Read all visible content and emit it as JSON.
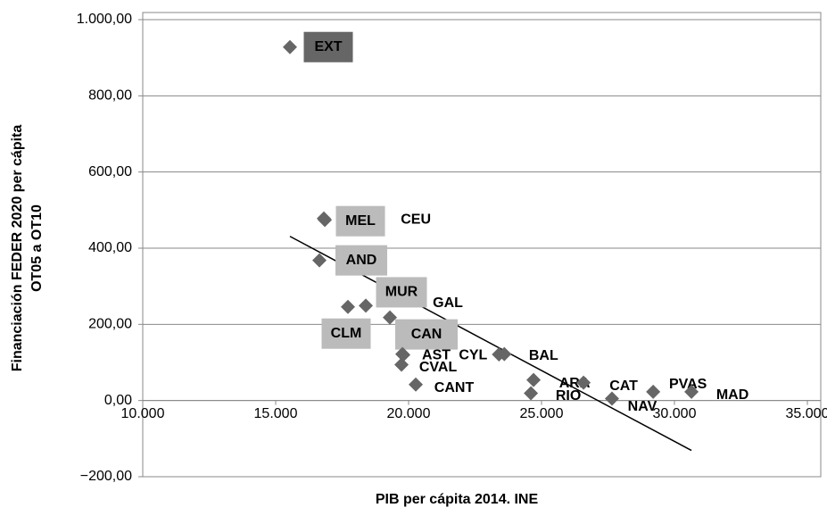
{
  "chart_data": {
    "type": "scatter",
    "xlabel": "PIB per cápita 2014. INE",
    "ylabel": [
      "Financiación FEDER 2020 per cápita",
      "OT05 a  OT10"
    ],
    "xlim": [
      10000,
      35000
    ],
    "xticks": [
      {
        "value": 10000,
        "label": "10.000"
      },
      {
        "value": 15000,
        "label": "15.000"
      },
      {
        "value": 20000,
        "label": "20.000"
      },
      {
        "value": 25000,
        "label": "25.000"
      },
      {
        "value": 30000,
        "label": "30.000"
      },
      {
        "value": 35000,
        "label": "35.000"
      }
    ],
    "ylim": [
      -200,
      1000
    ],
    "yticks": [
      {
        "value": -200,
        "label": "−200,00"
      },
      {
        "value": 0,
        "label": "0,00"
      },
      {
        "value": 200,
        "label": "200,00"
      },
      {
        "value": 400,
        "label": "400,00"
      },
      {
        "value": 600,
        "label": "600,00"
      },
      {
        "value": 800,
        "label": "800,00"
      },
      {
        "value": 1000,
        "label": "1.000,00"
      }
    ],
    "grid": true,
    "series": [
      {
        "color": "#666666",
        "labels": [
          "EXT",
          "MEL",
          "CEU",
          "AND",
          "MUR",
          "GAL",
          "CLM",
          "CAN",
          "AST",
          "CYL",
          "CVAL",
          "CANT",
          "BAL",
          "ARA",
          "RIO",
          "CAT",
          "NAV",
          "PVAS",
          "MAD"
        ],
        "x": [
          15537,
          16813,
          16850,
          16645,
          18390,
          19296,
          17718,
          19766,
          19800,
          23400,
          19733,
          20269,
          23600,
          24700,
          24600,
          26580,
          27650,
          29200,
          30640
        ],
        "values": [
          928,
          478,
          474,
          368,
          249,
          218,
          246,
          122,
          120,
          121,
          94,
          42,
          122,
          54,
          19,
          47,
          5,
          23,
          23
        ]
      }
    ],
    "trendline": {
      "color": "#000000",
      "x": [
        15537,
        30640
      ],
      "values": [
        431,
        -131
      ]
    }
  }
}
